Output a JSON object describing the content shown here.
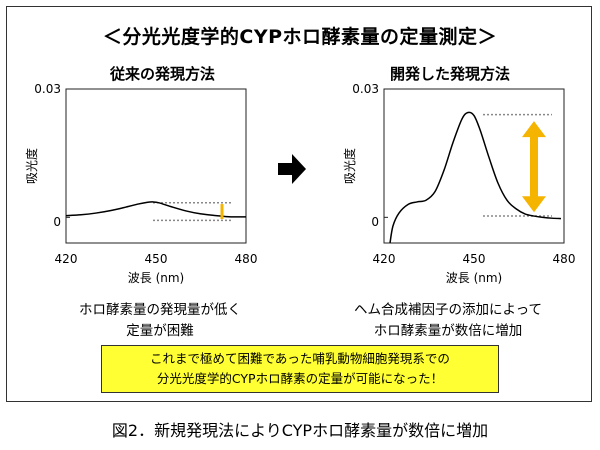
{
  "heading": "＜分光光度学的CYPホロ酵素量の定量測定＞",
  "figure_caption": "図2．新規発現法によりCYPホロ酵素量が数倍に増加",
  "arrow_icon": "right-arrow-icon",
  "highlight_box": {
    "line1": "これまで極めて困難であった哺乳動物細胞発現系での",
    "line2": "分光光度学的CYPホロ酵素の定量が可能になった！",
    "color": "#ffff33"
  },
  "panels": {
    "left": {
      "title": "従来の発現方法",
      "caption_line1": "ホロ酵素量の発現量が低く",
      "caption_line2": "定量が困難"
    },
    "right": {
      "title": "開発した発現方法",
      "caption_line1": "ヘム合成補因子の添加によって",
      "caption_line2": "ホロ酵素量が数倍に増加"
    }
  },
  "chart_data": [
    {
      "type": "line",
      "title": "従来の発現方法",
      "xlabel": "波長 (nm)",
      "ylabel": "吸光度",
      "xlim": [
        420,
        480
      ],
      "ylim": [
        -0.006,
        0.03
      ],
      "x_ticks": [
        "420",
        "450",
        "480"
      ],
      "y_ticks": [
        "0.03",
        "0"
      ],
      "y_tick_values": [
        0.03,
        0
      ],
      "series": [
        {
          "x": [
            420,
            425,
            430,
            435,
            440,
            444,
            447,
            449,
            451,
            455,
            460,
            465,
            470,
            473,
            475,
            480
          ],
          "y": [
            0.0004,
            0.0006,
            0.001,
            0.0016,
            0.0024,
            0.0031,
            0.0035,
            0.0036,
            0.0034,
            0.0025,
            0.0015,
            0.0008,
            0.0004,
            0.0002,
            0.0001,
            0.0001
          ],
          "color": "#000000"
        }
      ],
      "reference_lines": [
        {
          "x_start": 449,
          "x_end": 475,
          "y": 0.0034,
          "style": "dotted"
        },
        {
          "x_start": 449,
          "x_end": 475,
          "y": -0.0007,
          "style": "dotted"
        }
      ],
      "arrow": {
        "x": 472,
        "y_top": 0.0031,
        "y_bottom": -0.0004,
        "color": "#f5b400"
      }
    },
    {
      "type": "line",
      "title": "開発した発現方法",
      "xlabel": "波長 (nm)",
      "ylabel": "吸光度",
      "xlim": [
        420,
        480
      ],
      "ylim": [
        -0.006,
        0.03
      ],
      "x_ticks": [
        "420",
        "450",
        "480"
      ],
      "y_ticks": [
        "0.03",
        "0"
      ],
      "y_tick_values": [
        0.03,
        0
      ],
      "series": [
        {
          "x": [
            422,
            423,
            425,
            428,
            431,
            434,
            437,
            440,
            443,
            446,
            448,
            450,
            452,
            455,
            458,
            461,
            464,
            467,
            470,
            473,
            476,
            479
          ],
          "y": [
            -0.006,
            -0.002,
            0.001,
            0.003,
            0.0036,
            0.004,
            0.006,
            0.011,
            0.0175,
            0.023,
            0.0245,
            0.0238,
            0.0205,
            0.014,
            0.008,
            0.004,
            0.002,
            0.0008,
            0.0003,
            0.0,
            -0.0002,
            -0.0003
          ],
          "color": "#000000"
        }
      ],
      "reference_lines": [
        {
          "x_start": 453,
          "x_end": 476,
          "y": 0.024,
          "style": "dotted"
        },
        {
          "x_start": 453,
          "x_end": 476,
          "y": 0.0003,
          "style": "dotted"
        }
      ],
      "arrow": {
        "x": 470,
        "y_top": 0.0225,
        "y_bottom": 0.0012,
        "color": "#f5b400"
      }
    }
  ]
}
